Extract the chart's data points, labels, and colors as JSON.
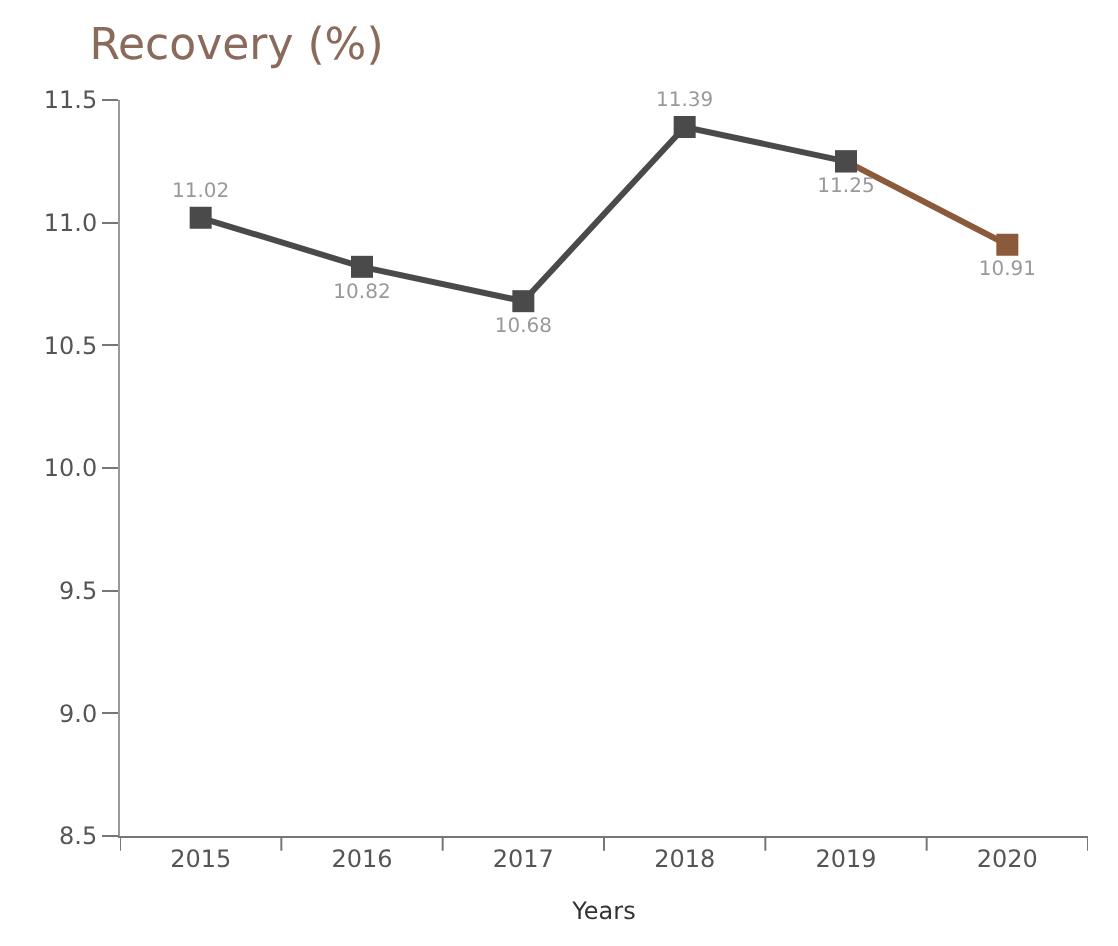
{
  "chart_data": {
    "type": "line",
    "title": "Recovery (%)",
    "xlabel": "Years",
    "categories": [
      "2015",
      "2016",
      "2017",
      "2018",
      "2019",
      "2020"
    ],
    "series": [
      {
        "color": "#4a4a4a",
        "values": [
          11.02,
          10.82,
          10.68,
          11.39,
          11.25,
          null
        ],
        "value_labels": [
          "11.02",
          "10.82",
          "10.68",
          "11.39",
          "11.25",
          null
        ]
      },
      {
        "color": "#8a5a3a",
        "values": [
          null,
          null,
          null,
          null,
          11.25,
          10.91
        ],
        "value_labels": [
          null,
          null,
          null,
          null,
          null,
          "10.91"
        ]
      }
    ],
    "ylim": [
      8.5,
      11.5
    ],
    "yticks": [
      {
        "value": 8.5,
        "label": "8.5"
      },
      {
        "value": 9.0,
        "label": "9.0"
      },
      {
        "value": 9.5,
        "label": "9.5"
      },
      {
        "value": 10.0,
        "label": "10.0"
      },
      {
        "value": 10.5,
        "label": "10.5"
      },
      {
        "value": 11.0,
        "label": "11.0"
      },
      {
        "value": 11.5,
        "label": "11.5"
      }
    ],
    "marker": "square",
    "line_style": "solid"
  }
}
